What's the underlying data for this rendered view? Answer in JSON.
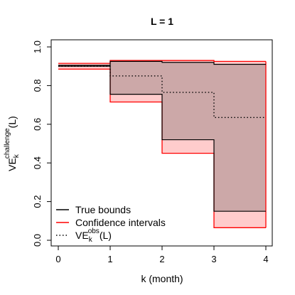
{
  "chart_data": {
    "type": "line",
    "title": "L =  1",
    "xlabel": "k (month)",
    "ylabel": {
      "main": "VE",
      "sub": "k",
      "sup": "challenge",
      "suffix": "(L)"
    },
    "xlim": [
      0,
      4
    ],
    "ylim": [
      0,
      1
    ],
    "xticks": [
      "0",
      "1",
      "2",
      "3",
      "4"
    ],
    "yticks": [
      "0.0",
      "0.2",
      "0.4",
      "0.6",
      "0.8",
      "1.0"
    ],
    "intervals": [
      [
        0,
        1
      ],
      [
        1,
        2
      ],
      [
        2,
        3
      ],
      [
        3,
        4
      ]
    ],
    "true_bounds": {
      "lower": [
        0.9,
        0.755,
        0.52,
        0.15
      ],
      "upper": [
        0.905,
        0.925,
        0.92,
        0.91
      ]
    },
    "confidence_intervals": {
      "lower": [
        0.885,
        0.715,
        0.45,
        0.065
      ],
      "upper": [
        0.915,
        0.93,
        0.93,
        0.925
      ]
    },
    "ve_obs": [
      0.9,
      0.85,
      0.765,
      0.635
    ],
    "legend": {
      "position": "bottom-left",
      "entries": [
        {
          "label": "True bounds",
          "color": "#000000",
          "style": "solid"
        },
        {
          "label": "Confidence intervals",
          "color": "#ff0000",
          "style": "solid"
        },
        {
          "label": {
            "main": "VE",
            "sub": "k",
            "sup": "obs",
            "suffix": "(L)"
          },
          "color": "#000000",
          "style": "dotted"
        }
      ]
    },
    "colors": {
      "ci_fill": "#ffcccc",
      "true_fill": "#cca8a8",
      "ci_line": "#ff0000",
      "true_line": "#000000"
    }
  }
}
